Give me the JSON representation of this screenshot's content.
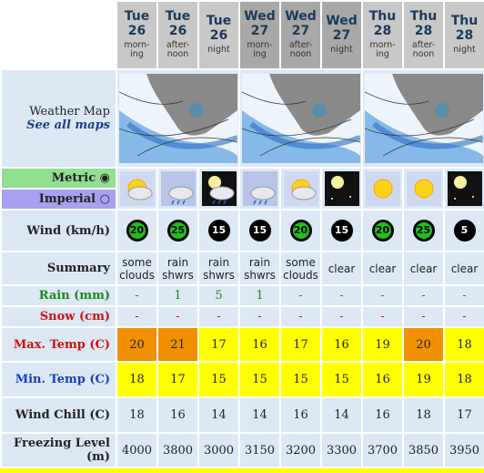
{
  "columns": [
    {
      "day": "Tue",
      "date": 26,
      "time": "morn-ing"
    },
    {
      "day": "Tue",
      "date": 26,
      "time": "after-noon"
    },
    {
      "day": "Tue",
      "date": 26,
      "time": "night"
    },
    {
      "day": "Wed",
      "date": 27,
      "time": "morn-ing"
    },
    {
      "day": "Wed",
      "date": 27,
      "time": "after-noon"
    },
    {
      "day": "Wed",
      "date": 27,
      "time": "night"
    },
    {
      "day": "Thu",
      "date": 28,
      "time": "morn-ing"
    },
    {
      "day": "Thu",
      "date": 28,
      "time": "after-noon"
    },
    {
      "day": "Thu",
      "date": 28,
      "time": "night"
    }
  ],
  "weather_map": {
    "label": "Weather Map",
    "link": "See all maps"
  },
  "units": {
    "metric": "Metric",
    "imperial": "Imperial"
  },
  "rows": [
    {
      "label": "Wind (km/h)",
      "values": [
        20,
        25,
        15,
        15,
        20,
        15,
        20,
        25,
        5
      ]
    },
    {
      "label": "Summary",
      "values": [
        "some clouds",
        "rain shwrs",
        "rain shwrs",
        "rain shwrs",
        "some clouds",
        "clear",
        "clear",
        "clear",
        "clear"
      ]
    },
    {
      "label": "Rain (mm)",
      "values": [
        "-",
        1,
        5,
        1,
        "-",
        "-",
        "-",
        "-",
        "-"
      ]
    },
    {
      "label": "Snow (cm)",
      "values": [
        "-",
        "-",
        "-",
        "-",
        "-",
        "-",
        "-",
        "-",
        "-"
      ]
    },
    {
      "label": "Max. Temp (C)",
      "values": [
        20,
        21,
        17,
        16,
        17,
        16,
        19,
        20,
        18
      ]
    },
    {
      "label": "Min. Temp (C)",
      "values": [
        18,
        17,
        15,
        15,
        15,
        15,
        16,
        19,
        18
      ]
    },
    {
      "label": "Wind Chill (C)",
      "values": [
        18,
        16,
        14,
        14,
        16,
        14,
        16,
        18,
        17
      ]
    },
    {
      "label": "Freezing Level (m)",
      "values": [
        4000,
        3800,
        3000,
        3150,
        3200,
        3300,
        3700,
        3850,
        3950
      ]
    }
  ]
}
